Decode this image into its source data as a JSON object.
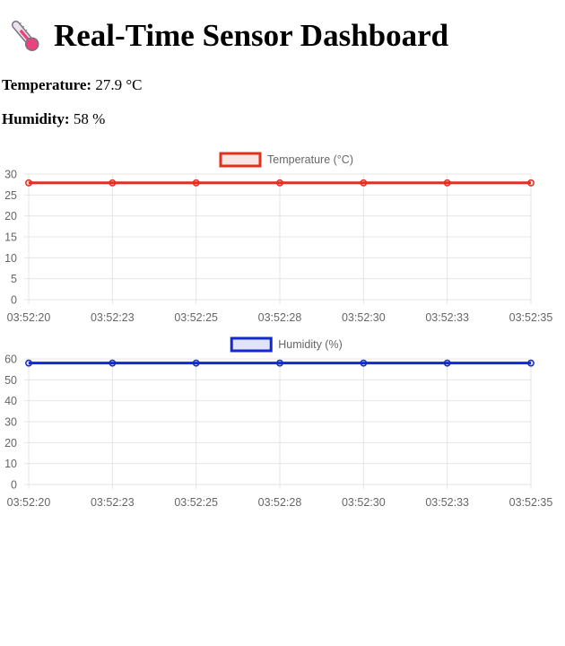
{
  "header": {
    "title": "Real-Time Sensor Dashboard",
    "icon": "thermometer-icon"
  },
  "readings": {
    "temperature_label": "Temperature:",
    "temperature_value": "27.9 °C",
    "humidity_label": "Humidity:",
    "humidity_value": "58 %"
  },
  "chart_data": [
    {
      "type": "line",
      "x": [
        "03:52:20",
        "03:52:23",
        "03:52:25",
        "03:52:28",
        "03:52:30",
        "03:52:33",
        "03:52:35"
      ],
      "series": [
        {
          "name": "Temperature (°C)",
          "values": [
            27.9,
            27.9,
            27.9,
            27.9,
            27.9,
            27.9,
            27.9
          ],
          "color": "#e0301e"
        }
      ],
      "ylim": [
        0,
        30
      ],
      "yticks": [
        0,
        5,
        10,
        15,
        20,
        25,
        30
      ],
      "grid": true,
      "legend": "top-center"
    },
    {
      "type": "line",
      "x": [
        "03:52:20",
        "03:52:23",
        "03:52:25",
        "03:52:28",
        "03:52:30",
        "03:52:33",
        "03:52:35"
      ],
      "series": [
        {
          "name": "Humidity (%)",
          "values": [
            58,
            58,
            58,
            58,
            58,
            58,
            58
          ],
          "color": "#1428d2"
        }
      ],
      "ylim": [
        0,
        60
      ],
      "yticks": [
        0,
        10,
        20,
        30,
        40,
        50,
        60
      ],
      "grid": true,
      "legend": "top-center"
    }
  ]
}
